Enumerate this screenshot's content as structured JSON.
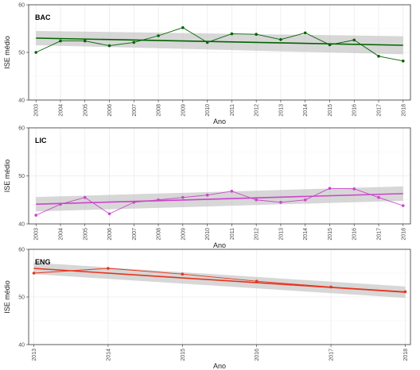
{
  "chart_data": [
    {
      "type": "line",
      "panel_label": "BAC",
      "xlabel": "Ano",
      "ylabel": "ISE médio",
      "x": [
        2003,
        2004,
        2005,
        2006,
        2007,
        2008,
        2009,
        2010,
        2011,
        2012,
        2013,
        2014,
        2015,
        2016,
        2017,
        2018
      ],
      "x_tick_labels": [
        "2003",
        "2004",
        "2005",
        "2006",
        "2007",
        "2008",
        "2009",
        "2010",
        "2011",
        "2012",
        "2013",
        "2014",
        "2015",
        "2016",
        "2017",
        "2018"
      ],
      "xlim": [
        2002.7,
        2018.3
      ],
      "ylim": [
        40,
        60
      ],
      "y_ticks": [
        40,
        50,
        60
      ],
      "y_tick_labels": [
        "40",
        "50",
        "60"
      ],
      "grid": true,
      "series": [
        {
          "values": [
            50.0,
            52.4,
            52.4,
            51.4,
            52.1,
            53.5,
            55.2,
            52.1,
            53.9,
            53.8,
            52.7,
            54.1,
            51.6,
            52.6,
            49.2,
            48.2
          ],
          "color": "#006400",
          "trend": {
            "start": 53.0,
            "end": 51.5
          },
          "band": {
            "start": [
              51.5,
              54.5
            ],
            "end": [
              49.6,
              53.4
            ]
          }
        }
      ]
    },
    {
      "type": "line",
      "panel_label": "LIC",
      "xlabel": "Ano",
      "ylabel": "ISE médio",
      "x": [
        2003,
        2004,
        2005,
        2006,
        2007,
        2008,
        2009,
        2010,
        2011,
        2012,
        2013,
        2014,
        2015,
        2016,
        2017,
        2018
      ],
      "x_tick_labels": [
        "2003",
        "2004",
        "2005",
        "2006",
        "2007",
        "2008",
        "2009",
        "2010",
        "2011",
        "2012",
        "2013",
        "2014",
        "2015",
        "2016",
        "2017",
        "2018"
      ],
      "xlim": [
        2002.7,
        2018.3
      ],
      "ylim": [
        40,
        60
      ],
      "y_ticks": [
        40,
        50,
        60
      ],
      "y_tick_labels": [
        "40",
        "50",
        "60"
      ],
      "grid": true,
      "series": [
        {
          "values": [
            41.8,
            44.1,
            45.5,
            42.1,
            44.5,
            45.0,
            45.5,
            46.0,
            46.8,
            45.0,
            44.5,
            45.0,
            47.4,
            47.3,
            45.5,
            43.8
          ],
          "color": "#cc44cc",
          "trend": {
            "start": 44.1,
            "end": 46.3
          },
          "band": {
            "start": [
              42.6,
              45.6
            ],
            "end": [
              44.8,
              47.8
            ]
          }
        }
      ]
    },
    {
      "type": "line",
      "panel_label": "ENG",
      "xlabel": "Ano",
      "ylabel": "ISE médio",
      "x": [
        2013,
        2014,
        2015,
        2016,
        2017,
        2018
      ],
      "x_tick_labels": [
        "2013",
        "2014",
        "2015",
        "2016",
        "2017",
        "2018"
      ],
      "xlim": [
        2012.93,
        2018.07
      ],
      "ylim": [
        40,
        60
      ],
      "y_ticks": [
        40,
        50,
        60
      ],
      "y_tick_labels": [
        "40",
        "50",
        "60"
      ],
      "grid": true,
      "series": [
        {
          "values": [
            55.0,
            56.0,
            54.8,
            53.3,
            52.1,
            51.1
          ],
          "color": "#e8341c",
          "trend": {
            "start": 56.0,
            "end": 51.0
          },
          "band": {
            "start": [
              54.8,
              57.2
            ],
            "end": [
              49.8,
              52.2
            ]
          }
        }
      ]
    }
  ]
}
